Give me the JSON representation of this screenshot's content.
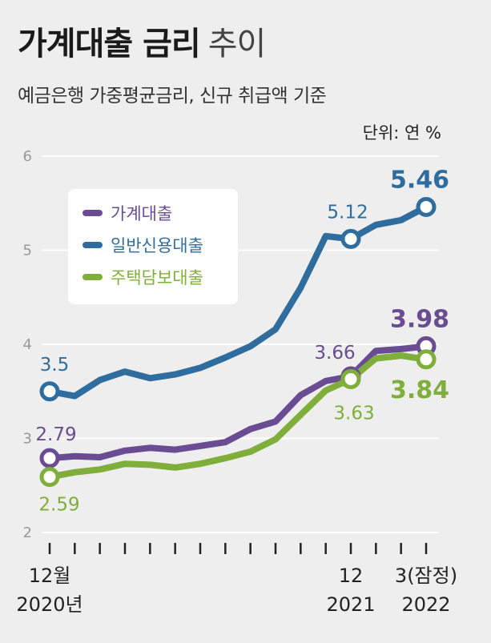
{
  "title": {
    "bold": "가계대출 금리",
    "light": "추이"
  },
  "subtitle": "예금은행 가중평균금리, 신규 취급액 기준",
  "unit": "단위: 연 %",
  "colors": {
    "household": "#6a4c93",
    "credit": "#2f6d9e",
    "mortgage": "#7fae3a",
    "background": "#eeeeee",
    "grid": "#ffffff"
  },
  "chart_data": {
    "type": "line",
    "x": [
      "2020-12",
      "2021-01",
      "2021-02",
      "2021-03",
      "2021-04",
      "2021-05",
      "2021-06",
      "2021-07",
      "2021-08",
      "2021-09",
      "2021-10",
      "2021-11",
      "2021-12",
      "2022-01",
      "2022-02",
      "2022-03"
    ],
    "x_tick_labels": [
      {
        "index": 0,
        "line1": "12월",
        "line2": "2020년"
      },
      {
        "index": 12,
        "line1": "12",
        "line2": "2021"
      },
      {
        "index": 15,
        "line1": "3(잠정)",
        "line2": "2022"
      }
    ],
    "ylim": [
      2,
      6
    ],
    "yticks": [
      2,
      3,
      4,
      5,
      6
    ],
    "grid": true,
    "legend_placement": "top-left",
    "series": [
      {
        "name": "가계대출",
        "color": "#6a4c93",
        "values": [
          2.79,
          2.81,
          2.8,
          2.87,
          2.9,
          2.88,
          2.92,
          2.96,
          3.1,
          3.18,
          3.46,
          3.61,
          3.66,
          3.93,
          3.95,
          3.98
        ]
      },
      {
        "name": "일반신용대출",
        "color": "#2f6d9e",
        "values": [
          3.5,
          3.45,
          3.62,
          3.71,
          3.64,
          3.68,
          3.75,
          3.86,
          3.98,
          4.16,
          4.6,
          5.15,
          5.12,
          5.27,
          5.32,
          5.46
        ]
      },
      {
        "name": "주택담보대출",
        "color": "#7fae3a",
        "values": [
          2.59,
          2.64,
          2.67,
          2.73,
          2.72,
          2.69,
          2.73,
          2.79,
          2.86,
          2.99,
          3.25,
          3.51,
          3.63,
          3.85,
          3.88,
          3.84
        ]
      }
    ],
    "annotations": [
      {
        "series": 1,
        "index": 0,
        "text": "3.5",
        "size": 23,
        "weight": "normal",
        "dx": 6,
        "dy": -26
      },
      {
        "series": 1,
        "index": 12,
        "text": "5.12",
        "size": 23,
        "weight": "normal",
        "dx": -4,
        "dy": -26
      },
      {
        "series": 1,
        "index": 15,
        "text": "5.46",
        "size": 30,
        "weight": "bold",
        "dx": -8,
        "dy": -24
      },
      {
        "series": 0,
        "index": 0,
        "text": "2.79",
        "size": 23,
        "weight": "normal",
        "dx": 8,
        "dy": -22
      },
      {
        "series": 0,
        "index": 12,
        "text": "3.66",
        "size": 23,
        "weight": "normal",
        "dx": -20,
        "dy": -22
      },
      {
        "series": 0,
        "index": 15,
        "text": "3.98",
        "size": 30,
        "weight": "bold",
        "dx": -8,
        "dy": -24
      },
      {
        "series": 2,
        "index": 0,
        "text": "2.59",
        "size": 23,
        "weight": "normal",
        "dx": 12,
        "dy": 42
      },
      {
        "series": 2,
        "index": 12,
        "text": "3.63",
        "size": 23,
        "weight": "normal",
        "dx": 4,
        "dy": 50
      },
      {
        "series": 2,
        "index": 15,
        "text": "3.84",
        "size": 30,
        "weight": "bold",
        "dx": -8,
        "dy": 48
      }
    ],
    "circled_indices": [
      0,
      12,
      15
    ]
  }
}
